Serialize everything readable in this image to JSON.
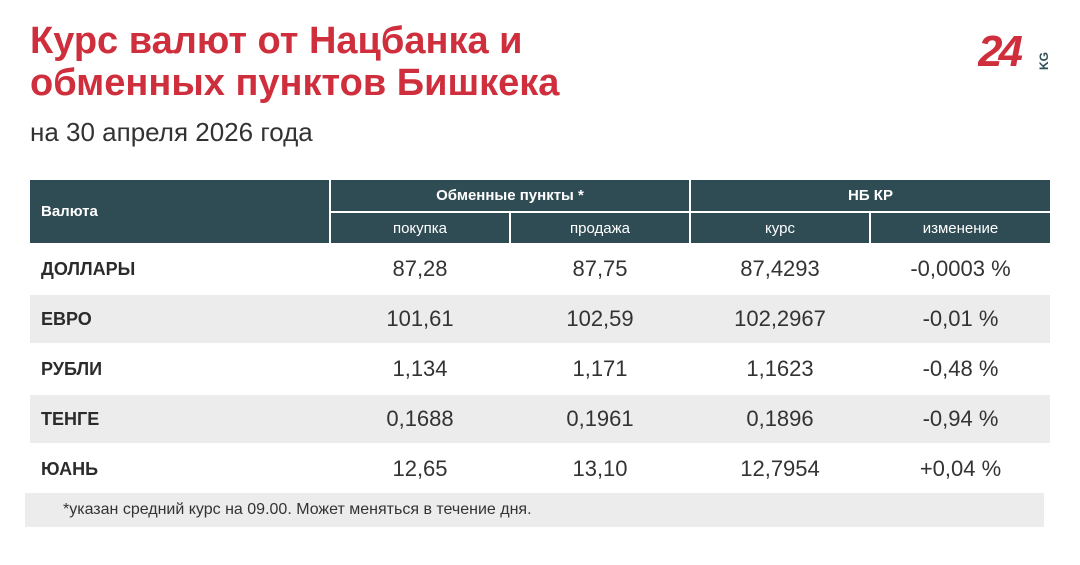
{
  "header": {
    "title_lines": [
      "Курс валют от Нацбанка и",
      "обменных пунктов Бишкека"
    ],
    "subtitle": "на 30 апреля 2026 года",
    "logo": {
      "number": "24",
      "suffix": "KG"
    }
  },
  "table": {
    "groups": [
      "Валюта",
      "Обменные пункты *",
      "НБ КР"
    ],
    "subheaders": [
      "покупка",
      "продажа",
      "курс",
      "изменение"
    ],
    "rows": [
      [
        "ДОЛЛАРЫ",
        "87,28",
        "87,75",
        "87,4293",
        "-0,0003 %"
      ],
      [
        "ЕВРО",
        "101,61",
        "102,59",
        "102,2967",
        "-0,01 %"
      ],
      [
        "РУБЛИ",
        "1,134",
        "1,171",
        "1,1623",
        "-0,48 %"
      ],
      [
        "ТЕНГЕ",
        "0,1688",
        "0,1961",
        "0,1896",
        "-0,94 %"
      ],
      [
        "ЮАНЬ",
        "12,65",
        "13,10",
        "12,7954",
        "+0,04 %"
      ]
    ]
  },
  "footnote": "*указан средний курс на 09.00. Может меняться в течение дня."
}
